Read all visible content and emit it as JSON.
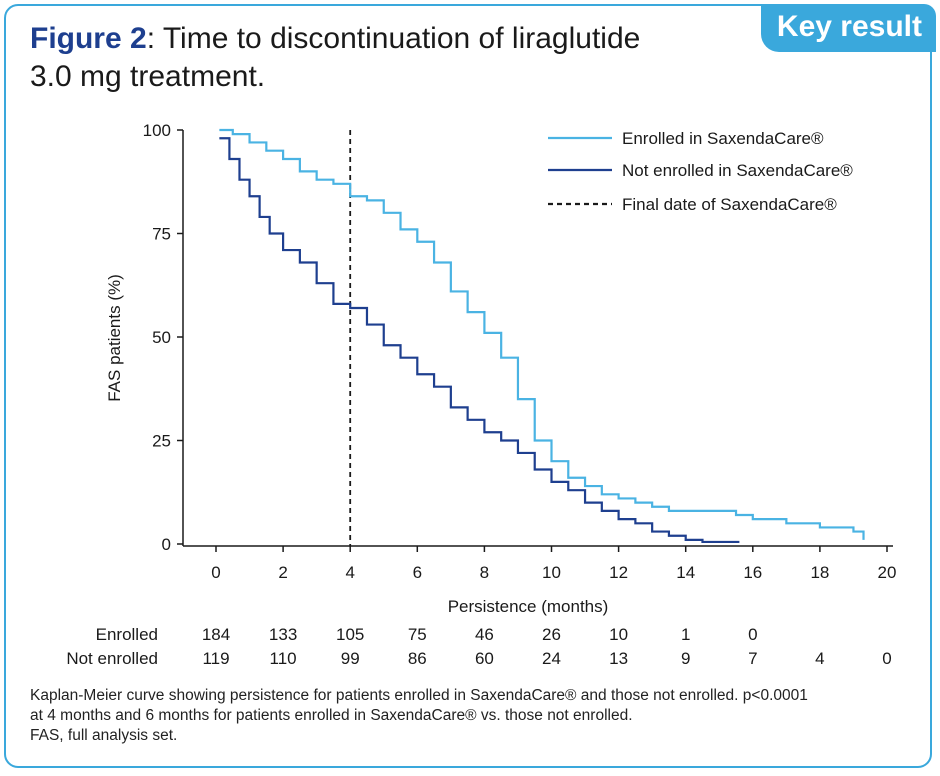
{
  "header": {
    "badge": "Key result",
    "figure_label": "Figure 2",
    "title_line1": ": Time to discontinuation of liraglutide",
    "title_line2": "3.0 mg treatment."
  },
  "colors": {
    "accent": "#3aa8dc",
    "enrolled": "#4ab3e3",
    "not_enrolled": "#1e3f8f",
    "final_date": "#1a1a1a"
  },
  "chart_data": {
    "type": "line",
    "xlabel": "Persistence (months)",
    "ylabel": "FAS patients (%)",
    "xlim": [
      0,
      20
    ],
    "ylim": [
      0,
      100
    ],
    "xticks": [
      "0",
      "2",
      "4",
      "6",
      "8",
      "10",
      "12",
      "14",
      "16",
      "18",
      "20"
    ],
    "yticks": [
      "0",
      "25",
      "50",
      "75",
      "100"
    ],
    "legend": [
      "Enrolled in SaxendaCare®",
      "Not enrolled in SaxendaCare®",
      "Final date of SaxendaCare®"
    ],
    "legend_position": "top-right",
    "vertical_line": {
      "name": "Final date of SaxendaCare®",
      "x": 4
    },
    "series": [
      {
        "name": "Enrolled in SaxendaCare®",
        "x": [
          0.1,
          0.5,
          1.0,
          1.5,
          2.0,
          2.5,
          3.0,
          3.5,
          4.0,
          4.5,
          5.0,
          5.5,
          6.0,
          6.5,
          7.0,
          7.5,
          8.0,
          8.5,
          9.0,
          9.5,
          10.0,
          10.5,
          11.0,
          11.5,
          12.0,
          12.5,
          13.0,
          13.5,
          14.0,
          15.0,
          15.5,
          16.0,
          17.0,
          18.0,
          19.0,
          19.3
        ],
        "y": [
          100,
          99,
          97,
          95,
          93,
          90,
          88,
          87,
          84,
          83,
          80,
          76,
          73,
          68,
          61,
          56,
          51,
          45,
          35,
          25,
          20,
          16,
          14,
          12,
          11,
          10,
          9,
          8,
          8,
          8,
          7,
          6,
          5,
          4,
          3,
          1
        ]
      },
      {
        "name": "Not enrolled in SaxendaCare®",
        "x": [
          0.1,
          0.4,
          0.7,
          1.0,
          1.3,
          1.6,
          2.0,
          2.5,
          3.0,
          3.5,
          4.0,
          4.5,
          5.0,
          5.5,
          6.0,
          6.5,
          7.0,
          7.5,
          8.0,
          8.5,
          9.0,
          9.5,
          10.0,
          10.5,
          11.0,
          11.5,
          12.0,
          12.5,
          13.0,
          13.5,
          14.0,
          14.5,
          15.0,
          15.6
        ],
        "y": [
          98,
          93,
          88,
          84,
          79,
          75,
          71,
          68,
          63,
          58,
          57,
          53,
          48,
          45,
          41,
          38,
          33,
          30,
          27,
          25,
          22,
          18,
          15,
          13,
          10,
          8,
          6,
          5,
          3,
          2,
          1,
          0.5,
          0.5,
          0.5
        ]
      }
    ],
    "at_risk": {
      "x": [
        0,
        2,
        4,
        6,
        8,
        10,
        12,
        14,
        16,
        18,
        20
      ],
      "rows": [
        {
          "label": "Enrolled",
          "values": [
            "184",
            "133",
            "105",
            "75",
            "46",
            "26",
            "10",
            "1",
            "0",
            "",
            ""
          ]
        },
        {
          "label": "Not enrolled",
          "values": [
            "119",
            "110",
            "99",
            "86",
            "60",
            "24",
            "13",
            "9",
            "7",
            "4",
            "0"
          ]
        }
      ]
    }
  },
  "footnote": {
    "line1": "Kaplan-Meier curve showing persistence for patients enrolled in SaxendaCare® and those not enrolled. p<0.0001",
    "line2": "at 4 months and 6 months for patients enrolled in SaxendaCare® vs. those not enrolled.",
    "line3": "FAS, full analysis set."
  }
}
